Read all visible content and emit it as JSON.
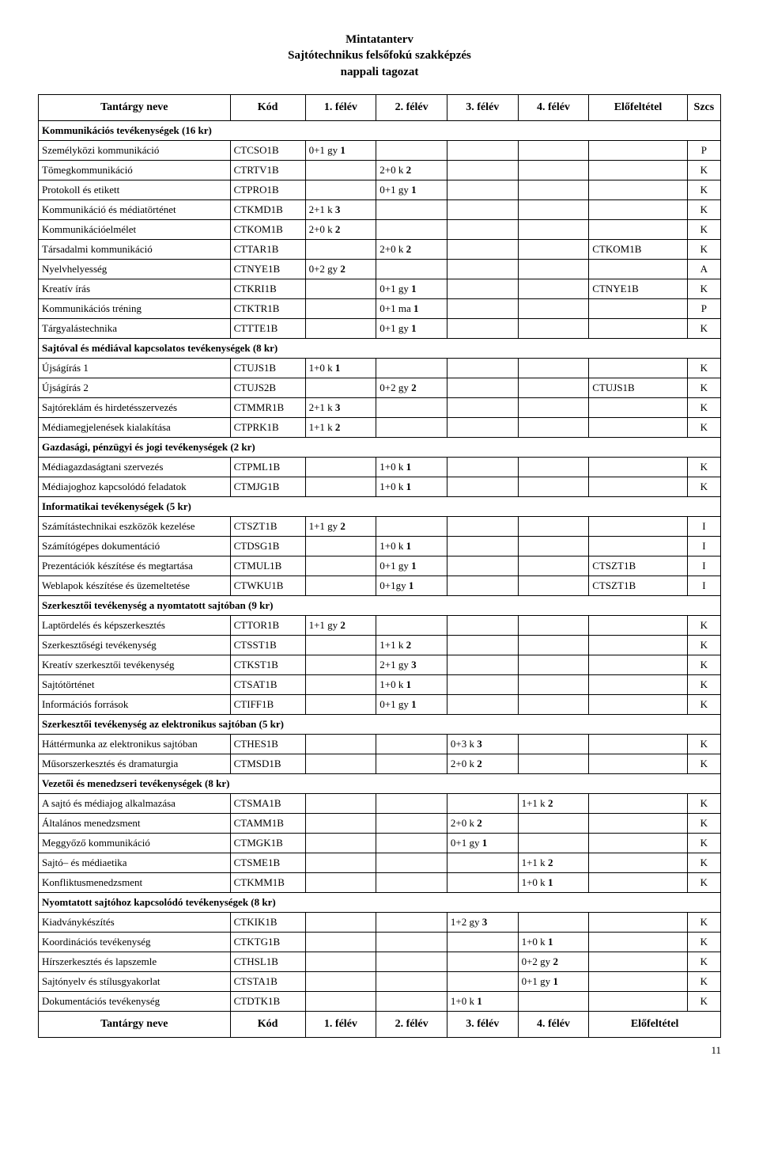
{
  "title": {
    "line1": "Mintatanterv",
    "line2": "Sajtótechnikus felsőfokú szakképzés",
    "line3": "nappali tagozat"
  },
  "header": {
    "name": "Tantárgy neve",
    "code": "Kód",
    "sem1": "1. félév",
    "sem2": "2. félév",
    "sem3": "3. félév",
    "sem4": "4. félév",
    "pre": "Előfeltétel",
    "szcs": "Szcs"
  },
  "footer": {
    "name": "Tantárgy neve",
    "code": "Kód",
    "sem1": "1. félév",
    "sem2": "2. félév",
    "sem3": "3. félév",
    "sem4": "4. félév",
    "pre": "Előfeltétel"
  },
  "page_number": "11",
  "sections": [
    {
      "title": "Kommunikációs tevékenységek (16 kr)",
      "rows": [
        {
          "name": "Személyközi kommunikáció",
          "code": "CTCSO1B",
          "c": [
            "0+1 gy 1",
            "",
            "",
            "",
            ""
          ],
          "szcs": "P"
        },
        {
          "name": "Tömegkommunikáció",
          "code": "CTRTV1B",
          "c": [
            "",
            "2+0 k 2",
            "",
            "",
            ""
          ],
          "szcs": "K"
        },
        {
          "name": "Protokoll és etikett",
          "code": "CTPRO1B",
          "c": [
            "",
            "0+1 gy 1",
            "",
            "",
            ""
          ],
          "szcs": "K"
        },
        {
          "name": "Kommunikáció és médiatörténet",
          "code": "CTKMD1B",
          "c": [
            "2+1 k 3",
            "",
            "",
            "",
            ""
          ],
          "szcs": "K"
        },
        {
          "name": "Kommunikációelmélet",
          "code": "CTKOM1B",
          "c": [
            "2+0 k 2",
            "",
            "",
            "",
            ""
          ],
          "szcs": "K"
        },
        {
          "name": "Társadalmi kommunikáció",
          "code": "CTTAR1B",
          "c": [
            "",
            "2+0 k 2",
            "",
            "",
            "CTKOM1B"
          ],
          "szcs": "K"
        },
        {
          "name": "Nyelvhelyesség",
          "code": "CTNYE1B",
          "c": [
            "0+2 gy 2",
            "",
            "",
            "",
            ""
          ],
          "szcs": "A"
        },
        {
          "name": "Kreatív írás",
          "code": "CTKRI1B",
          "c": [
            "",
            "0+1 gy 1",
            "",
            "",
            "CTNYE1B"
          ],
          "szcs": "K"
        },
        {
          "name": "Kommunikációs tréning",
          "code": "CTKTR1B",
          "c": [
            "",
            "0+1 ma 1",
            "",
            "",
            ""
          ],
          "szcs": "P"
        },
        {
          "name": "Tárgyalástechnika",
          "code": "CTTTE1B",
          "c": [
            "",
            "0+1 gy 1",
            "",
            "",
            ""
          ],
          "szcs": "K"
        }
      ]
    },
    {
      "title": "Sajtóval és médiával kapcsolatos tevékenységek (8 kr)",
      "rows": [
        {
          "name": "Újságírás 1",
          "code": "CTUJS1B",
          "c": [
            "1+0 k 1",
            "",
            "",
            "",
            ""
          ],
          "szcs": "K"
        },
        {
          "name": "Újságírás 2",
          "code": "CTUJS2B",
          "c": [
            "",
            "0+2 gy 2",
            "",
            "",
            "CTUJS1B"
          ],
          "szcs": "K"
        },
        {
          "name": "Sajtóreklám és hirdetésszervezés",
          "code": "CTMMR1B",
          "c": [
            "2+1 k 3",
            "",
            "",
            "",
            ""
          ],
          "szcs": "K"
        },
        {
          "name": "Médiamegjelenések kialakítása",
          "code": "CTPRK1B",
          "c": [
            "1+1 k 2",
            "",
            "",
            "",
            ""
          ],
          "szcs": "K"
        }
      ]
    },
    {
      "title": "Gazdasági, pénzügyi és jogi tevékenységek (2 kr)",
      "rows": [
        {
          "name": "Médiagazdaságtani szervezés",
          "code": "CTPML1B",
          "c": [
            "",
            "1+0 k 1",
            "",
            "",
            ""
          ],
          "szcs": "K"
        },
        {
          "name": "Médiajoghoz kapcsolódó feladatok",
          "code": "CTMJG1B",
          "c": [
            "",
            "1+0 k 1",
            "",
            "",
            ""
          ],
          "szcs": "K"
        }
      ]
    },
    {
      "title": "Informatikai tevékenységek (5 kr)",
      "rows": [
        {
          "name": "Számítástechnikai eszközök kezelése",
          "code": "CTSZT1B",
          "c": [
            "1+1 gy 2",
            "",
            "",
            "",
            ""
          ],
          "szcs": "I"
        },
        {
          "name": "Számítógépes dokumentáció",
          "code": "CTDSG1B",
          "c": [
            "",
            "1+0 k 1",
            "",
            "",
            ""
          ],
          "szcs": "I"
        },
        {
          "name": "Prezentációk készítése és megtartása",
          "code": "CTMUL1B",
          "c": [
            "",
            "0+1 gy 1",
            "",
            "",
            "CTSZT1B"
          ],
          "szcs": "I"
        },
        {
          "name": "Weblapok készítése és üzemeltetése",
          "code": "CTWKU1B",
          "c": [
            "",
            "0+1gy 1",
            "",
            "",
            "CTSZT1B"
          ],
          "szcs": "I"
        }
      ]
    },
    {
      "title": "Szerkesztői tevékenység a nyomtatott sajtóban (9 kr)",
      "rows": [
        {
          "name": "Laptördelés és képszerkesztés",
          "code": "CTTOR1B",
          "c": [
            "1+1 gy 2",
            "",
            "",
            "",
            ""
          ],
          "szcs": "K"
        },
        {
          "name": "Szerkesztőségi tevékenység",
          "code": "CTSST1B",
          "c": [
            "",
            "1+1 k 2",
            "",
            "",
            ""
          ],
          "szcs": "K"
        },
        {
          "name": "Kreatív szerkesztői tevékenység",
          "code": "CTKST1B",
          "c": [
            "",
            "2+1 gy 3",
            "",
            "",
            ""
          ],
          "szcs": "K"
        },
        {
          "name": "Sajtótörténet",
          "code": "CTSAT1B",
          "c": [
            "",
            "1+0 k 1",
            "",
            "",
            ""
          ],
          "szcs": "K"
        },
        {
          "name": "Információs források",
          "code": "CTIFF1B",
          "c": [
            "",
            "0+1 gy 1",
            "",
            "",
            ""
          ],
          "szcs": "K"
        }
      ]
    },
    {
      "title": "Szerkesztői tevékenység az elektronikus sajtóban (5 kr)",
      "rows": [
        {
          "name": "Háttérmunka az elektronikus sajtóban",
          "code": "CTHES1B",
          "c": [
            "",
            "",
            "0+3 k 3",
            "",
            ""
          ],
          "szcs": "K"
        },
        {
          "name": "Műsorszerkesztés és dramaturgia",
          "code": "CTMSD1B",
          "c": [
            "",
            "",
            "2+0 k 2",
            "",
            ""
          ],
          "szcs": "K"
        }
      ]
    },
    {
      "title": "Vezetői és menedzseri tevékenységek (8 kr)",
      "rows": [
        {
          "name": "A sajtó és médiajog alkalmazása",
          "code": "CTSMA1B",
          "c": [
            "",
            "",
            "",
            "1+1 k 2",
            ""
          ],
          "szcs": "K"
        },
        {
          "name": "Általános menedzsment",
          "code": "CTAMM1B",
          "c": [
            "",
            "",
            "2+0 k 2",
            "",
            ""
          ],
          "szcs": "K"
        },
        {
          "name": "Meggyőző kommunikáció",
          "code": "CTMGK1B",
          "c": [
            "",
            "",
            "0+1 gy 1",
            "",
            ""
          ],
          "szcs": "K"
        },
        {
          "name": "Sajtó– és médiaetika",
          "code": "CTSME1B",
          "c": [
            "",
            "",
            "",
            "1+1 k 2",
            ""
          ],
          "szcs": "K"
        },
        {
          "name": "Konfliktusmenedzsment",
          "code": "CTKMM1B",
          "c": [
            "",
            "",
            "",
            "1+0 k 1",
            ""
          ],
          "szcs": "K"
        }
      ]
    },
    {
      "title": "Nyomtatott sajtóhoz kapcsolódó tevékenységek (8 kr)",
      "rows": [
        {
          "name": "Kiadványkészítés",
          "code": "CTKIK1B",
          "c": [
            "",
            "",
            "1+2 gy 3",
            "",
            ""
          ],
          "szcs": "K"
        },
        {
          "name": "Koordinációs tevékenység",
          "code": "CTKTG1B",
          "c": [
            "",
            "",
            "",
            "1+0 k 1",
            ""
          ],
          "szcs": "K"
        },
        {
          "name": "Hírszerkesztés és lapszemle",
          "code": "CTHSL1B",
          "c": [
            "",
            "",
            "",
            "0+2 gy 2",
            ""
          ],
          "szcs": "K"
        },
        {
          "name": "Sajtónyelv és stílusgyakorlat",
          "code": "CTSTA1B",
          "c": [
            "",
            "",
            "",
            "0+1 gy 1",
            ""
          ],
          "szcs": "K"
        },
        {
          "name": "Dokumentációs tevékenység",
          "code": "CTDTK1B",
          "c": [
            "",
            "",
            "1+0 k 1",
            "",
            ""
          ],
          "szcs": "K"
        }
      ]
    }
  ]
}
